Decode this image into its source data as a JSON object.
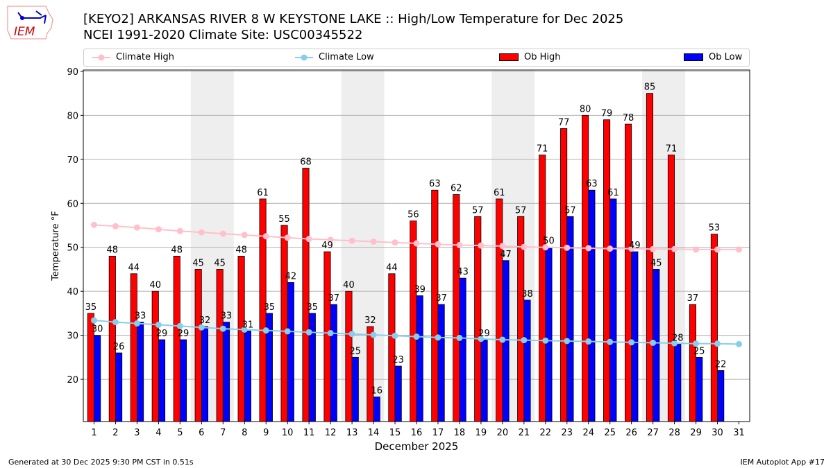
{
  "header": {
    "title": "[KEYO2] ARKANSAS RIVER 8 W KEYSTONE LAKE :: High/Low Temperature for Dec 2025",
    "subtitle": "NCEI 1991-2020 Climate Site: USC00345522",
    "logo_text": "IEM"
  },
  "footer": {
    "left": "Generated at 30 Dec 2025 9:30 PM CST in 0.51s",
    "right": "IEM Autoplot App #17"
  },
  "colors": {
    "ob_high": "#ff0000",
    "ob_low": "#0000ff",
    "climate_high": "#ffc0cb",
    "climate_low": "#87ceeb",
    "weekend": "#eeeeee"
  },
  "chart_data": {
    "type": "bar",
    "title": "High/Low Temperature for Dec 2025",
    "xlabel": "December 2025",
    "ylabel": "Temperature °F",
    "ylim": [
      10.4,
      90.3
    ],
    "xlim": [
      0.5,
      31.5
    ],
    "grid": true,
    "yticks": [
      20,
      30,
      40,
      50,
      60,
      70,
      80,
      90
    ],
    "legend_placement": "top",
    "legend": [
      "Climate High",
      "Climate Low",
      "Ob High",
      "Ob Low"
    ],
    "x": [
      1,
      2,
      3,
      4,
      5,
      6,
      7,
      8,
      9,
      10,
      11,
      12,
      13,
      14,
      15,
      16,
      17,
      18,
      19,
      20,
      21,
      22,
      23,
      24,
      25,
      26,
      27,
      28,
      29,
      30,
      31
    ],
    "weekends": [
      [
        6,
        7
      ],
      [
        13,
        14
      ],
      [
        20,
        21
      ],
      [
        27,
        28
      ]
    ],
    "series": [
      {
        "name": "Ob High",
        "type": "bar",
        "values": [
          35,
          48,
          44,
          40,
          48,
          45,
          45,
          48,
          61,
          55,
          68,
          49,
          40,
          32,
          44,
          56,
          63,
          62,
          57,
          61,
          57,
          71,
          77,
          80,
          79,
          78,
          85,
          71,
          37,
          53,
          null
        ]
      },
      {
        "name": "Ob Low",
        "type": "bar",
        "values": [
          30,
          26,
          33,
          29,
          29,
          32,
          33,
          31,
          35,
          42,
          35,
          37,
          25,
          16,
          23,
          39,
          37,
          43,
          29,
          47,
          38,
          50,
          57,
          63,
          61,
          49,
          45,
          28,
          25,
          22,
          null
        ]
      },
      {
        "name": "Climate High",
        "type": "line",
        "values": [
          55.1,
          54.8,
          54.5,
          54.1,
          53.7,
          53.4,
          53.1,
          52.8,
          52.5,
          52.2,
          51.9,
          51.7,
          51.5,
          51.3,
          51.1,
          50.9,
          50.7,
          50.5,
          50.4,
          50.3,
          50.1,
          50.0,
          49.9,
          49.8,
          49.7,
          49.7,
          49.6,
          49.6,
          49.5,
          49.5,
          49.5
        ]
      },
      {
        "name": "Climate Low",
        "type": "line",
        "values": [
          33.4,
          33.0,
          32.7,
          32.4,
          32.1,
          31.8,
          31.5,
          31.3,
          31.1,
          30.9,
          30.7,
          30.5,
          30.3,
          30.1,
          29.9,
          29.7,
          29.5,
          29.4,
          29.2,
          29.0,
          28.9,
          28.8,
          28.7,
          28.6,
          28.5,
          28.4,
          28.3,
          28.2,
          28.1,
          28.1,
          28.0
        ]
      }
    ]
  }
}
